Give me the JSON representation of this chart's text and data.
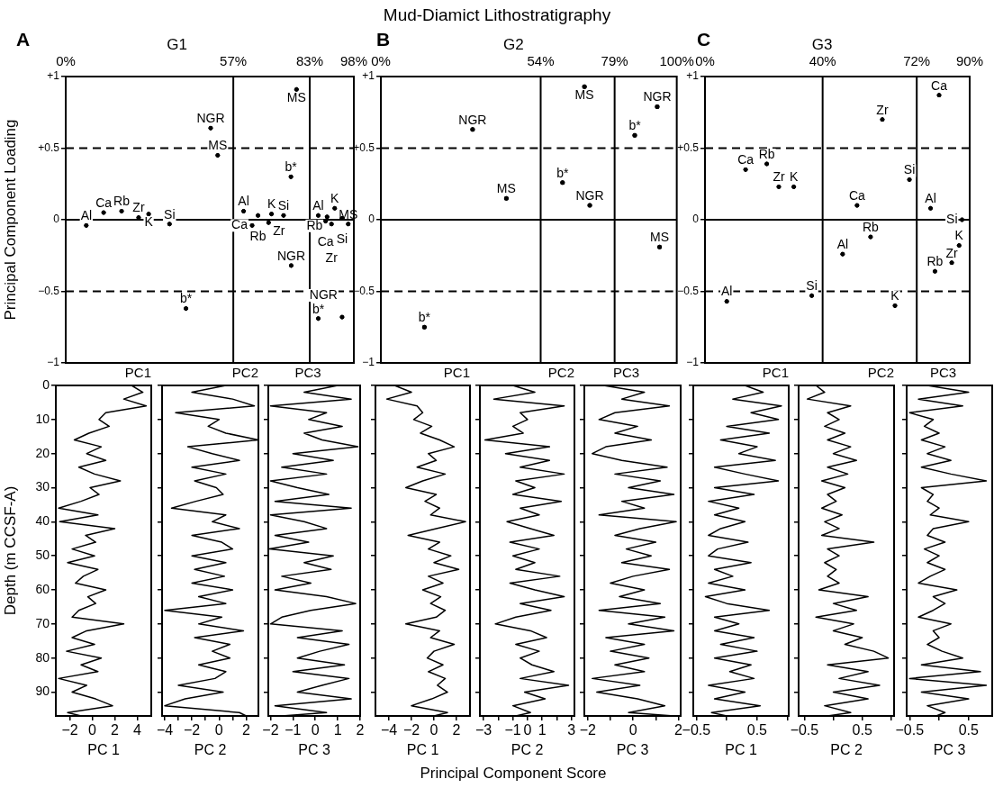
{
  "chart_data": [
    {
      "type": "scatter",
      "title": "G1",
      "ylabel": "Principal Component Loading",
      "annotations": [
        "A"
      ],
      "x": [
        7,
        12.9,
        19,
        24.8,
        28.2,
        35.3,
        49.3,
        51.7,
        40.9,
        78.5,
        76.6,
        60.5,
        65.4,
        70,
        74.1,
        63.4,
        69,
        76.7,
        85.9,
        91.5,
        88.9,
        88.4,
        94,
        90.4,
        96.1,
        85.9,
        94
      ],
      "values": [
        -0.04,
        0.05,
        0.06,
        0.015,
        0.04,
        -0.03,
        0.64,
        0.45,
        -0.62,
        0.91,
        0.3,
        0.06,
        0.03,
        0.04,
        0.03,
        -0.04,
        -0.02,
        -0.32,
        0.03,
        0.08,
        0.02,
        -0.01,
        0.01,
        -0.03,
        -0.03,
        -0.69,
        -0.68
      ],
      "value_labels": [
        "Al",
        "Ca",
        "Rb",
        "Zr",
        "K",
        "Si",
        "NGR",
        "MS",
        "b*",
        "MS",
        "b*",
        "Al",
        "Rb",
        "K",
        "Si",
        "Ca",
        "Zr",
        "NGR",
        "Al",
        "K",
        "Rb",
        "Ca",
        "Si",
        "Zr",
        "MS",
        "b*",
        "NGR"
      ],
      "color": "#000000",
      "marker": "circle",
      "xlim": [
        0,
        98
      ],
      "xticks": [
        {
          "value": 0,
          "label": "0%"
        },
        {
          "value": 57,
          "label": "57%"
        },
        {
          "value": 83,
          "label": "83%"
        },
        {
          "value": 98,
          "label": "98%"
        }
      ],
      "ylim": [
        -1,
        1
      ],
      "yticks": [
        {
          "value": 1,
          "label": "+1"
        },
        {
          "value": 0.5,
          "label": "+0.5"
        },
        0,
        {
          "value": -0.5,
          "label": "−0.5"
        },
        {
          "value": -1,
          "label": "−1"
        }
      ],
      "ref_lines": [
        {
          "axis": "x",
          "value": 57
        },
        {
          "axis": "x",
          "value": 83
        },
        {
          "axis": "y",
          "value": 0
        },
        {
          "axis": "y",
          "value": 0.5,
          "line_style": "dashed"
        },
        {
          "axis": "y",
          "value": -0.5,
          "line_style": "dashed"
        }
      ],
      "grid": false,
      "legend": false
    },
    {
      "type": "scatter",
      "title": "G2",
      "annotations": [
        "Mud-Diamict Lithostratigraphy",
        "B"
      ],
      "x": [
        31,
        42.4,
        14.7,
        68.8,
        61.4,
        70.6,
        93.4,
        85.8,
        94.2
      ],
      "values": [
        0.63,
        0.15,
        -0.75,
        0.93,
        0.26,
        0.1,
        0.79,
        0.59,
        -0.19
      ],
      "value_labels": [
        "NGR",
        "MS",
        "b*",
        "MS",
        "b*",
        "NGR",
        "NGR",
        "b*",
        "MS"
      ],
      "color": "#000000",
      "marker": "circle",
      "xlim": [
        0,
        100
      ],
      "xticks": [
        {
          "value": 0,
          "label": "0%"
        },
        {
          "value": 54,
          "label": "54%"
        },
        {
          "value": 79,
          "label": "79%"
        },
        {
          "value": 100,
          "label": "100%"
        }
      ],
      "ylim": [
        -1,
        1
      ],
      "yticks": [
        {
          "value": 1,
          "label": "+1"
        },
        {
          "value": 0.5,
          "label": "+0.5"
        },
        0,
        {
          "value": -0.5,
          "label": "−0.5"
        },
        {
          "value": -1,
          "label": "−1"
        }
      ],
      "ref_lines": [
        {
          "axis": "x",
          "value": 54
        },
        {
          "axis": "x",
          "value": 79
        },
        {
          "axis": "y",
          "value": 0
        },
        {
          "axis": "y",
          "value": 0.5,
          "line_style": "dashed"
        },
        {
          "axis": "y",
          "value": -0.5,
          "line_style": "dashed"
        }
      ],
      "grid": false,
      "legend": false
    },
    {
      "type": "scatter",
      "title": "G3",
      "annotations": [
        "C"
      ],
      "x": [
        13.8,
        21,
        25.1,
        30.2,
        7.4,
        36.3,
        60.3,
        69.5,
        51.7,
        56.3,
        46.8,
        64.6,
        79.6,
        76.7,
        87.4,
        86.4,
        83.9,
        78.2
      ],
      "values": [
        0.35,
        0.39,
        0.23,
        0.23,
        -0.57,
        -0.53,
        0.7,
        0.28,
        0.1,
        -0.12,
        -0.24,
        -0.6,
        0.87,
        0.08,
        0,
        -0.18,
        -0.3,
        -0.36
      ],
      "value_labels": [
        "Ca",
        "Rb",
        "Zr",
        "K",
        "Al",
        "Si",
        "Zr",
        "Si",
        "Ca",
        "Rb",
        "Al",
        "K",
        "Ca",
        "Al",
        "Si",
        "K",
        "Zr",
        "Rb"
      ],
      "color": "#000000",
      "marker": "circle",
      "xlim": [
        0,
        90
      ],
      "xticks": [
        {
          "value": 0,
          "label": "0%"
        },
        {
          "value": 40,
          "label": "40%"
        },
        {
          "value": 72,
          "label": "72%"
        },
        {
          "value": 90,
          "label": "90%"
        }
      ],
      "ylim": [
        -1,
        1
      ],
      "yticks": [
        {
          "value": 1,
          "label": "+1"
        },
        {
          "value": 0.5,
          "label": "+0.5"
        },
        0,
        {
          "value": -0.5,
          "label": "−0.5"
        },
        {
          "value": -1,
          "label": "−1"
        }
      ],
      "ref_lines": [
        {
          "axis": "x",
          "value": 40
        },
        {
          "axis": "x",
          "value": 72
        },
        {
          "axis": "y",
          "value": 0
        },
        {
          "axis": "y",
          "value": 0.5,
          "line_style": "dashed"
        },
        {
          "axis": "y",
          "value": -0.5,
          "line_style": "dashed"
        }
      ],
      "grid": false,
      "legend": false
    },
    {
      "type": "line",
      "title": "PC1",
      "xlabel": "PC 1",
      "ylabel": "Depth (m CCSF-A)",
      "orientation": "horizontal",
      "color": "#000000",
      "marker": "none",
      "grid": false,
      "legend": false,
      "x": [
        0,
        2,
        4,
        6,
        8,
        10,
        12,
        14,
        16,
        18,
        20,
        22,
        24,
        26,
        28,
        30,
        32,
        34,
        36,
        38,
        40,
        42,
        44,
        46,
        48,
        50,
        52,
        54,
        56,
        58,
        60,
        62,
        64,
        66,
        68,
        70,
        72,
        74,
        76,
        78,
        80,
        82,
        84,
        86,
        88,
        90,
        92,
        94,
        96,
        97
      ],
      "values": [
        3.5,
        4.5,
        2.8,
        4.8,
        1.2,
        0.6,
        1.5,
        -0.3,
        -1.6,
        0.8,
        -0.5,
        1.2,
        -1.2,
        0.2,
        2.5,
        -0.2,
        0.6,
        -1,
        -3,
        0.5,
        -2.9,
        2,
        -0.6,
        0.3,
        -1.8,
        0.2,
        -2.2,
        0.5,
        -0.8,
        -1.5,
        1.2,
        -0.4,
        0.3,
        -1.2,
        -1.8,
        2.8,
        -0.5,
        -1.8,
        0.2,
        -2.3,
        0.8,
        -1,
        0.5,
        -3,
        -0.5,
        -1.8,
        0.3,
        1.8,
        -2.2,
        -1
      ],
      "xlim": [
        -3.25,
        5.25
      ],
      "xticks": [
        {
          "value": -2,
          "label": "−2"
        },
        0,
        2,
        4
      ],
      "ylim": [
        97,
        0
      ],
      "yticks": [
        0,
        10,
        20,
        30,
        40,
        50,
        60,
        70,
        80,
        90
      ]
    },
    {
      "type": "line",
      "title": "PC2",
      "xlabel": "PC 2",
      "annotations": [
        "Principal Component Score"
      ],
      "orientation": "horizontal",
      "color": "#000000",
      "marker": "none",
      "grid": false,
      "legend": false,
      "tick_labels": "x",
      "x": [
        0,
        2,
        4,
        6,
        8,
        10,
        12,
        14,
        16,
        18,
        20,
        22,
        24,
        26,
        28,
        30,
        32,
        34,
        36,
        38,
        40,
        42,
        44,
        46,
        48,
        50,
        52,
        54,
        56,
        58,
        60,
        62,
        64,
        66,
        68,
        70,
        72,
        74,
        76,
        78,
        80,
        82,
        84,
        86,
        88,
        90,
        92,
        94,
        96,
        97
      ],
      "values": [
        0.5,
        -2,
        1,
        2.6,
        -3.2,
        0,
        -0.8,
        0.5,
        2.9,
        -2.3,
        -0.5,
        1.5,
        -2,
        0.5,
        -1.8,
        -0.2,
        0.3,
        -1.7,
        -3.5,
        0.5,
        -0.5,
        1.5,
        -2,
        0.2,
        1,
        -2,
        0.5,
        -1.8,
        0.4,
        -2,
        1,
        -1.5,
        0.5,
        -4,
        0.2,
        -1.5,
        1.8,
        -1.8,
        0.8,
        -0.5,
        0.8,
        -1.5,
        0.5,
        -0.3,
        -3,
        0.3,
        -2.5,
        -4,
        1.5,
        2
      ],
      "xlim": [
        -4.2,
        2.9
      ],
      "xticks": [
        {
          "value": -4,
          "label": "−4"
        },
        {
          "value": -3,
          "label": null
        },
        {
          "value": -2,
          "label": "−2"
        },
        {
          "value": -1,
          "label": null
        },
        0,
        {
          "value": 1,
          "label": null
        },
        2
      ],
      "ylim": [
        97,
        0
      ],
      "yticks": [
        0,
        10,
        20,
        30,
        40,
        50,
        60,
        70,
        80,
        90
      ]
    },
    {
      "type": "line",
      "title": "PC3",
      "xlabel": "PC 3",
      "orientation": "horizontal",
      "color": "#000000",
      "marker": "none",
      "grid": false,
      "legend": false,
      "tick_labels": "x",
      "x": [
        0,
        2,
        4,
        6,
        8,
        10,
        12,
        14,
        16,
        18,
        20,
        22,
        24,
        26,
        28,
        30,
        32,
        34,
        36,
        38,
        40,
        42,
        44,
        46,
        48,
        50,
        52,
        54,
        56,
        58,
        60,
        62,
        64,
        66,
        68,
        70,
        72,
        74,
        76,
        78,
        80,
        82,
        84,
        86,
        88,
        90,
        92,
        94,
        96,
        97
      ],
      "values": [
        1,
        -0.5,
        1.6,
        -2,
        0.5,
        -0.3,
        1.2,
        -0.5,
        0.3,
        1.9,
        -1,
        0.8,
        -1.5,
        0.5,
        -2,
        -0.8,
        0.6,
        -1.8,
        1.6,
        -2,
        -0.5,
        0.5,
        -1.8,
        -0.3,
        -2.05,
        0.8,
        -0.5,
        0.7,
        -1.5,
        -0.2,
        -1.8,
        0.5,
        1.8,
        -0.2,
        -1.5,
        -2,
        1.2,
        -0.8,
        1.5,
        0.2,
        -0.8,
        1.3,
        -1,
        1.5,
        0.3,
        -0.8,
        1.6,
        -1.8,
        0.5,
        -1.5
      ],
      "xlim": [
        -2.1,
        2
      ],
      "xticks": [
        {
          "value": -2,
          "label": "−2"
        },
        {
          "value": -1,
          "label": "−1"
        },
        0,
        1,
        2
      ],
      "ylim": [
        97,
        0
      ],
      "yticks": [
        0,
        10,
        20,
        30,
        40,
        50,
        60,
        70,
        80,
        90
      ]
    },
    {
      "type": "line",
      "title": "PC1",
      "xlabel": "PC 1",
      "orientation": "horizontal",
      "color": "#000000",
      "marker": "none",
      "grid": false,
      "legend": false,
      "tick_labels": "x",
      "x": [
        0,
        2,
        4,
        6,
        8,
        10,
        12,
        14,
        16,
        18,
        20,
        22,
        24,
        26,
        28,
        30,
        32,
        34,
        36,
        38,
        40,
        42,
        44,
        46,
        48,
        50,
        52,
        54,
        56,
        58,
        60,
        62,
        64,
        66,
        68,
        70,
        72,
        74,
        76,
        78,
        80,
        82,
        84,
        86,
        88,
        90,
        92,
        94,
        96,
        97
      ],
      "values": [
        -3.5,
        -2,
        -4.2,
        -1.5,
        -1,
        -1.8,
        -0.2,
        -1.2,
        0.5,
        1.8,
        -0.5,
        0.2,
        -1.5,
        1,
        -1,
        -2.5,
        0.2,
        -0.8,
        0.5,
        -0.3,
        2.8,
        0.2,
        -2.3,
        0.5,
        -0.5,
        1.5,
        0,
        2.2,
        -0.5,
        0.8,
        -1,
        0.6,
        -0.3,
        1,
        0.2,
        -2.5,
        0.5,
        -0.3,
        1.8,
        0,
        -0.6,
        0.8,
        -0.5,
        1,
        0.3,
        1.2,
        -0.2,
        -2,
        1.2,
        0
      ],
      "xlim": [
        -5.2,
        3.2
      ],
      "xticks": [
        {
          "value": -4,
          "label": "−4"
        },
        {
          "value": -2,
          "label": "−2"
        },
        0,
        2
      ],
      "ylim": [
        97,
        0
      ],
      "yticks": [
        0,
        10,
        20,
        30,
        40,
        50,
        60,
        70,
        80,
        90
      ]
    },
    {
      "type": "line",
      "title": "PC2",
      "xlabel": "PC 2",
      "orientation": "horizontal",
      "color": "#000000",
      "marker": "none",
      "grid": false,
      "legend": false,
      "tick_labels": "x",
      "x": [
        0,
        2,
        4,
        6,
        8,
        10,
        12,
        14,
        16,
        18,
        20,
        22,
        24,
        26,
        28,
        30,
        32,
        34,
        36,
        38,
        40,
        42,
        44,
        46,
        48,
        50,
        52,
        54,
        56,
        58,
        60,
        62,
        64,
        66,
        68,
        70,
        72,
        74,
        76,
        78,
        80,
        82,
        84,
        86,
        88,
        90,
        92,
        94,
        96,
        97
      ],
      "values": [
        -1,
        0.5,
        -2.3,
        2.5,
        -0.5,
        0,
        -1,
        -0.3,
        -2.9,
        1.5,
        -1.5,
        1.5,
        -0.5,
        2.5,
        -0.8,
        0.5,
        -1,
        2.3,
        -0.5,
        0.8,
        -1.4,
        0.2,
        1.8,
        -1.2,
        0.8,
        -1,
        0.5,
        -0.8,
        2.2,
        -1.2,
        0.5,
        2.5,
        -0.5,
        1.6,
        -0.8,
        -2.2,
        0.2,
        1.3,
        -0.8,
        0.8,
        -0.5,
        0.3,
        1.8,
        -0.5,
        2.8,
        -0.2,
        1.2,
        -1,
        0.2,
        -0.8
      ],
      "xlim": [
        -3.25,
        3.2
      ],
      "xticks": [
        {
          "value": -3,
          "label": "−3"
        },
        {
          "value": -2,
          "label": null
        },
        {
          "value": -1,
          "label": "−1"
        },
        0,
        1,
        {
          "value": 2,
          "label": null
        },
        3
      ],
      "ylim": [
        97,
        0
      ],
      "yticks": [
        0,
        10,
        20,
        30,
        40,
        50,
        60,
        70,
        80,
        90
      ]
    },
    {
      "type": "line",
      "title": "PC3",
      "xlabel": "PC 3",
      "orientation": "horizontal",
      "color": "#000000",
      "marker": "none",
      "grid": false,
      "legend": false,
      "tick_labels": "x",
      "x": [
        0,
        2,
        4,
        6,
        8,
        10,
        12,
        14,
        16,
        18,
        20,
        22,
        24,
        26,
        28,
        30,
        32,
        34,
        36,
        38,
        40,
        42,
        44,
        46,
        48,
        50,
        52,
        54,
        56,
        58,
        60,
        62,
        64,
        66,
        68,
        70,
        72,
        74,
        76,
        78,
        80,
        82,
        84,
        86,
        88,
        90,
        92,
        94,
        96,
        97
      ],
      "values": [
        -1.3,
        0.5,
        -0.5,
        1.6,
        -0.8,
        -1.5,
        0.2,
        -0.8,
        0.8,
        -1.2,
        -1.8,
        -0.5,
        1.5,
        -0.8,
        1.2,
        -0.2,
        1.8,
        -0.5,
        0.5,
        -1.5,
        1.9,
        0.3,
        -0.8,
        1,
        -0.3,
        0.8,
        -0.5,
        1.6,
        0,
        -1,
        0.5,
        -0.6,
        1.2,
        -1.5,
        1.4,
        -0.2,
        1.8,
        -1.2,
        0.5,
        -1,
        0.7,
        -0.8,
        0.5,
        -1.8,
        0.3,
        -1.6,
        0.2,
        1.4,
        -0.2,
        1.8
      ],
      "xlim": [
        -2.15,
        2.1
      ],
      "xticks": [
        {
          "value": -2,
          "label": "−2"
        },
        {
          "value": -1,
          "label": null
        },
        0,
        {
          "value": 1,
          "label": null
        },
        2
      ],
      "ylim": [
        97,
        0
      ],
      "yticks": [
        0,
        10,
        20,
        30,
        40,
        50,
        60,
        70,
        80,
        90
      ]
    },
    {
      "type": "line",
      "title": "PC1",
      "xlabel": "PC 1",
      "orientation": "horizontal",
      "color": "#000000",
      "marker": "none",
      "grid": false,
      "legend": false,
      "tick_labels": "x",
      "x": [
        0,
        2,
        4,
        6,
        8,
        10,
        12,
        14,
        16,
        18,
        20,
        22,
        24,
        26,
        28,
        30,
        32,
        34,
        36,
        38,
        40,
        42,
        44,
        46,
        48,
        50,
        52,
        54,
        56,
        58,
        60,
        62,
        64,
        66,
        68,
        70,
        72,
        74,
        76,
        78,
        80,
        82,
        84,
        86,
        88,
        90,
        92,
        94,
        96,
        97
      ],
      "values": [
        0.3,
        0.6,
        0.1,
        0.9,
        0.4,
        0.85,
        0,
        0.7,
        -0.1,
        0.5,
        0.2,
        0.8,
        -0.2,
        0.3,
        0.85,
        -0.2,
        0.45,
        -0.3,
        0.2,
        -0.2,
        0.3,
        -0.1,
        -0.3,
        0.35,
        -0.15,
        -0.3,
        0.4,
        -0.2,
        0.1,
        -0.3,
        0.3,
        -0.35,
        0,
        0.7,
        -0.2,
        0.2,
        -0.2,
        0.45,
        -0.1,
        0.5,
        -0.2,
        0.4,
        0.05,
        0.45,
        -0.3,
        0.3,
        -0.2,
        0.55,
        -0.25,
        0
      ],
      "xlim": [
        -0.55,
        1.02
      ],
      "xticks": [
        {
          "value": -0.5,
          "label": "−0.5"
        },
        {
          "value": 0,
          "label": null
        },
        0.5,
        {
          "value": 1,
          "label": null
        }
      ],
      "ylim": [
        97,
        0
      ],
      "yticks": [
        0,
        10,
        20,
        30,
        40,
        50,
        60,
        70,
        80,
        90
      ]
    },
    {
      "type": "line",
      "title": "PC2",
      "xlabel": "PC 2",
      "orientation": "horizontal",
      "color": "#000000",
      "marker": "none",
      "grid": false,
      "legend": false,
      "tick_labels": "x",
      "x": [
        0,
        2,
        4,
        6,
        8,
        10,
        12,
        14,
        16,
        18,
        20,
        22,
        24,
        26,
        28,
        30,
        32,
        34,
        36,
        38,
        40,
        42,
        44,
        46,
        48,
        50,
        52,
        54,
        56,
        58,
        60,
        62,
        64,
        66,
        68,
        70,
        72,
        74,
        76,
        78,
        80,
        82,
        84,
        86,
        88,
        90,
        92,
        94,
        96,
        97
      ],
      "values": [
        -0.3,
        -0.15,
        -0.45,
        0.3,
        -0.1,
        0.1,
        -0.15,
        0.2,
        -0.1,
        0.3,
        0,
        0.4,
        -0.1,
        0.25,
        -0.2,
        0.2,
        -0.1,
        0.05,
        -0.2,
        0.15,
        -0.15,
        0.1,
        -0.2,
        0.7,
        -0.1,
        0.1,
        -0.15,
        0.05,
        -0.1,
        0.1,
        -0.25,
        0.6,
        0,
        0.4,
        -0.3,
        0.35,
        0,
        0.5,
        0.2,
        0.7,
        0.95,
        -0.1,
        0.6,
        0.1,
        0.8,
        0,
        0.6,
        -0.15,
        0.3,
        -0.1
      ],
      "xlim": [
        -0.6,
        1.05
      ],
      "xticks": [
        {
          "value": -0.5,
          "label": "−0.5"
        },
        {
          "value": 0,
          "label": null
        },
        0.5,
        {
          "value": 1,
          "label": null
        }
      ],
      "ylim": [
        97,
        0
      ],
      "yticks": [
        0,
        10,
        20,
        30,
        40,
        50,
        60,
        70,
        80,
        90
      ]
    },
    {
      "type": "line",
      "title": "PC3",
      "xlabel": "PC 3",
      "orientation": "horizontal",
      "color": "#000000",
      "marker": "none",
      "grid": false,
      "legend": false,
      "tick_labels": "x",
      "x": [
        0,
        2,
        4,
        6,
        8,
        10,
        12,
        14,
        16,
        18,
        20,
        22,
        24,
        26,
        28,
        30,
        32,
        34,
        36,
        38,
        40,
        42,
        44,
        46,
        48,
        50,
        52,
        54,
        56,
        58,
        60,
        62,
        64,
        66,
        68,
        70,
        72,
        74,
        76,
        78,
        80,
        82,
        84,
        86,
        88,
        90,
        92,
        94,
        96,
        97
      ],
      "values": [
        -0.2,
        0.5,
        -0.35,
        0.4,
        -0.5,
        -0.1,
        -0.25,
        0,
        -0.3,
        0.1,
        -0.2,
        0.2,
        -0.3,
        0.2,
        0.8,
        -0.3,
        -0.1,
        -0.2,
        0,
        -0.15,
        0.5,
        -0.1,
        -0.2,
        0.1,
        -0.25,
        0,
        -0.2,
        0.1,
        -0.15,
        -0.35,
        0.3,
        -0.1,
        0.1,
        -0.1,
        -0.35,
        0.2,
        -0.1,
        0,
        -0.2,
        0.05,
        0.4,
        -0.3,
        0.7,
        -0.5,
        0.8,
        -0.3,
        0.5,
        -0.2,
        0.1,
        -0.05
      ],
      "xlim": [
        -0.55,
        0.9
      ],
      "xticks": [
        {
          "value": -0.5,
          "label": "−0.5"
        },
        {
          "value": 0,
          "label": null
        },
        0.5
      ],
      "ylim": [
        97,
        0
      ],
      "yticks": [
        0,
        10,
        20,
        30,
        40,
        50,
        60,
        70,
        80,
        90
      ]
    }
  ]
}
